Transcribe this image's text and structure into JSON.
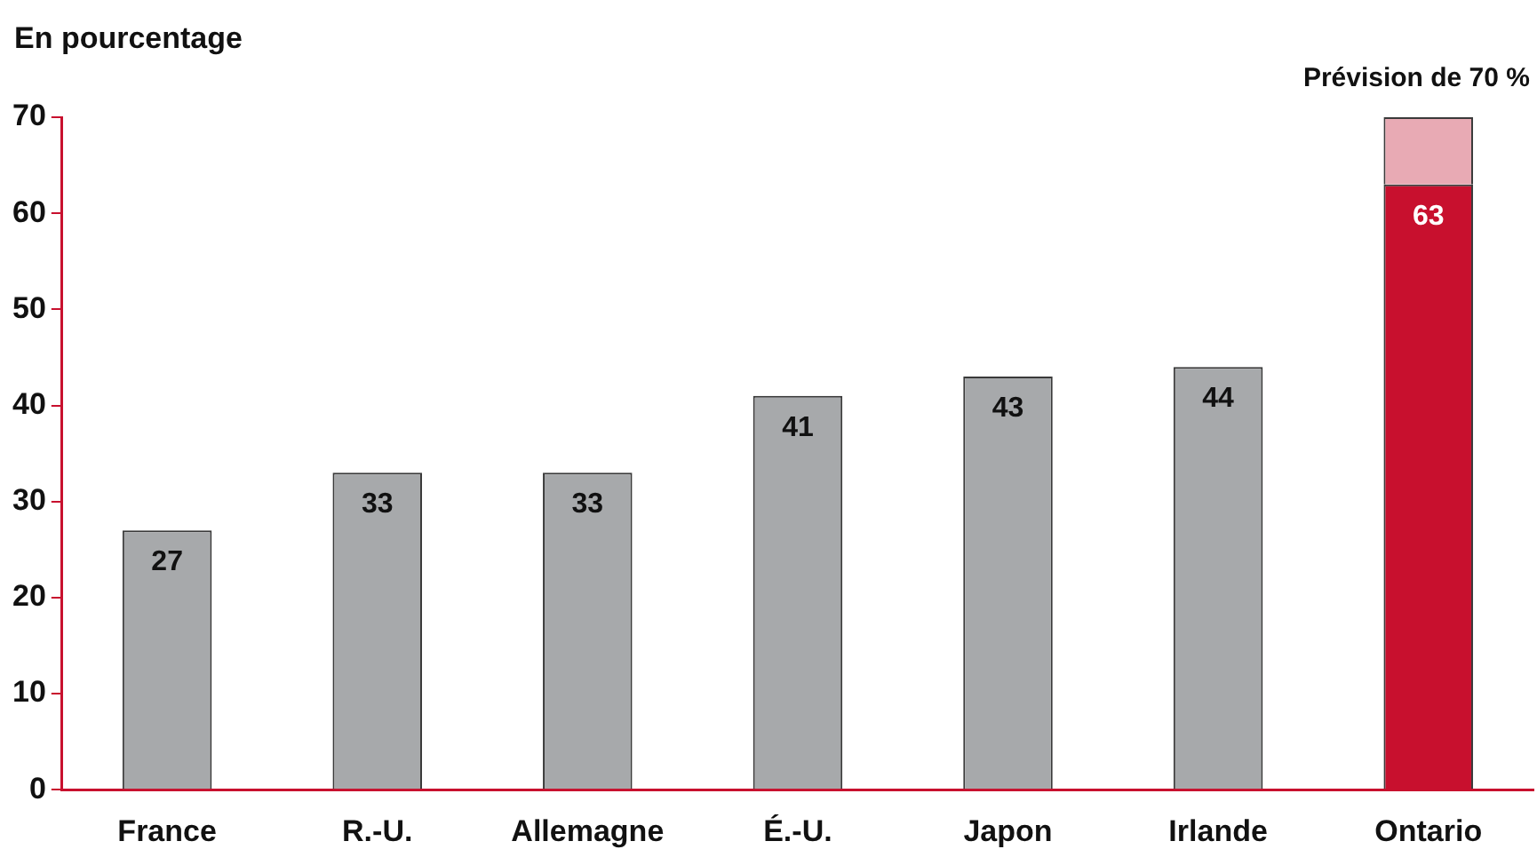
{
  "chart_data": {
    "type": "bar",
    "ylabel": "En pourcentage",
    "categories": [
      "France",
      "R.-U.",
      "Allemagne",
      "É.-U.",
      "Japon",
      "Irlande",
      "Ontario"
    ],
    "stacked": true,
    "series": [
      {
        "colors": [
          "#a7a9ab",
          "#a7a9ab",
          "#a7a9ab",
          "#a7a9ab",
          "#a7a9ab",
          "#a7a9ab",
          "#c8102e"
        ],
        "values": [
          27,
          33,
          33,
          41,
          43,
          44,
          63
        ],
        "value_labels": [
          "27",
          "33",
          "33",
          "41",
          "43",
          "44",
          "63"
        ]
      },
      {
        "color": "#e8aab4",
        "values": [
          null,
          null,
          null,
          null,
          null,
          null,
          7
        ]
      }
    ],
    "ylim": [
      0,
      70
    ],
    "yticks": [
      0,
      10,
      20,
      30,
      40,
      50,
      60,
      70
    ],
    "grid": false,
    "legend": false,
    "annotations": [
      {
        "text": "Prévision de 70 %",
        "x": "Ontario",
        "y": 70
      }
    ]
  }
}
